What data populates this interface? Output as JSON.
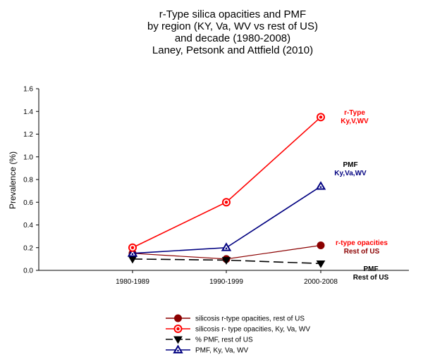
{
  "chart_data": {
    "type": "line",
    "title_lines": [
      "r-Type silica opacities and PMF",
      "by region (KY, Va, WV vs rest of US)",
      "and decade (1980-2008)",
      "Laney, Petsonk and Attfield (2010)"
    ],
    "ylabel": "Prevalence (%)",
    "xlabel": "",
    "ylim": [
      0,
      1.6
    ],
    "yticks": [
      "0.0",
      "0.2",
      "0.4",
      "0.6",
      "0.8",
      "1.0",
      "1.2",
      "1.4",
      "1.6"
    ],
    "categories": [
      "1980-1989",
      "1990-1999",
      "2000-2008"
    ],
    "series": [
      {
        "name": "silicosis r-type opacities, rest of US",
        "values": [
          0.15,
          0.1,
          0.22
        ],
        "color": "#8b0000",
        "marker": "circle-filled",
        "dash": "solid"
      },
      {
        "name": "silicosis r- type opacities, Ky, Va, WV",
        "values": [
          0.2,
          0.6,
          1.35
        ],
        "color": "#ff0000",
        "marker": "circle-ring",
        "dash": "solid"
      },
      {
        "name": "% PMF, rest of US",
        "values": [
          0.1,
          0.09,
          0.06
        ],
        "color": "#000000",
        "marker": "triangle-down",
        "dash": "dashed"
      },
      {
        "name": "PMF, Ky, Va, WV",
        "values": [
          0.15,
          0.2,
          0.74
        ],
        "color": "#000080",
        "marker": "triangle-up-open",
        "dash": "solid"
      }
    ],
    "annotations": [
      {
        "lines": [
          "r-Type",
          "Ky,V,WV"
        ],
        "colors": [
          "#ff0000",
          "#ff0000"
        ]
      },
      {
        "lines": [
          "PMF",
          "Ky,Va,WV"
        ],
        "colors": [
          "#000000",
          "#000080"
        ]
      },
      {
        "lines": [
          "r-type opacities",
          "Rest of US"
        ],
        "colors": [
          "#ff0000",
          "#8b0000"
        ]
      },
      {
        "lines": [
          "PMF",
          "Rest of US"
        ],
        "colors": [
          "#000000",
          "#000000"
        ]
      }
    ],
    "legend_position": "bottom-center",
    "grid": false
  }
}
